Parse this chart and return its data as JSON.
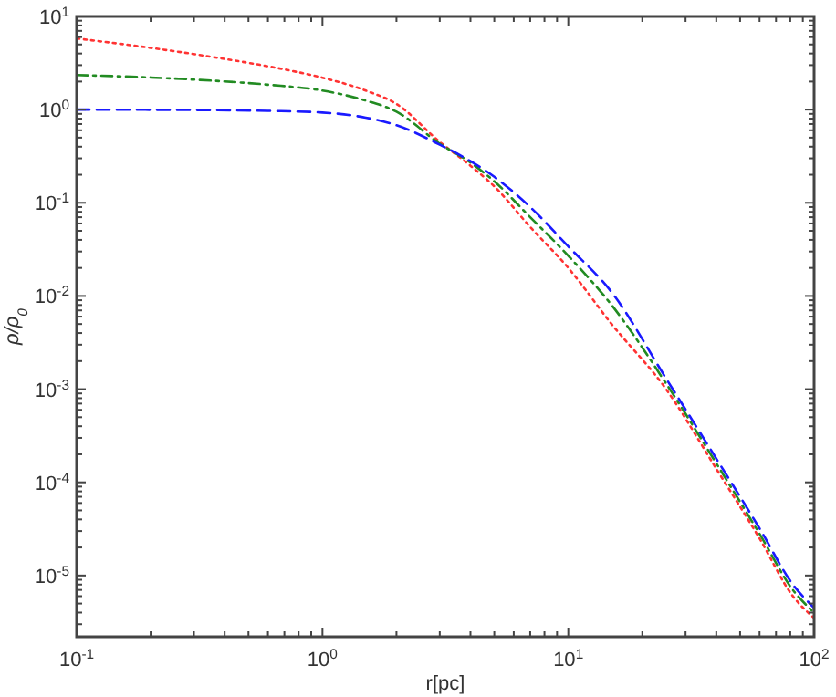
{
  "chart_data": {
    "type": "line",
    "xlabel": "r[pc]",
    "ylabel": "ρ/ρ$_{0}$",
    "log": "xy",
    "grid": false,
    "xlim": [
      0.1,
      100
    ],
    "ylim": [
      2.2e-06,
      10
    ],
    "xticks": [
      {
        "value": 0.1,
        "label": "10$^{-1}$"
      },
      {
        "value": 0.2,
        "label": null
      },
      {
        "value": 0.3,
        "label": null
      },
      {
        "value": 0.4,
        "label": null
      },
      {
        "value": 0.5,
        "label": null
      },
      {
        "value": 0.6,
        "label": null
      },
      {
        "value": 0.7,
        "label": null
      },
      {
        "value": 0.8,
        "label": null
      },
      {
        "value": 0.9,
        "label": null
      },
      {
        "value": 1,
        "label": "10$^{0}$"
      },
      {
        "value": 2,
        "label": null
      },
      {
        "value": 3,
        "label": null
      },
      {
        "value": 4,
        "label": null
      },
      {
        "value": 5,
        "label": null
      },
      {
        "value": 6,
        "label": null
      },
      {
        "value": 7,
        "label": null
      },
      {
        "value": 8,
        "label": null
      },
      {
        "value": 9,
        "label": null
      },
      {
        "value": 10,
        "label": "10$^{1}$"
      },
      {
        "value": 20,
        "label": null
      },
      {
        "value": 30,
        "label": null
      },
      {
        "value": 40,
        "label": null
      },
      {
        "value": 50,
        "label": null
      },
      {
        "value": 60,
        "label": null
      },
      {
        "value": 70,
        "label": null
      },
      {
        "value": 80,
        "label": null
      },
      {
        "value": 90,
        "label": null
      },
      {
        "value": 100,
        "label": "10$^{2}$"
      }
    ],
    "yticks": [
      {
        "value": 1e-05,
        "label": "10$^{-5}$"
      },
      {
        "value": 0.0001,
        "label": "10$^{-4}$"
      },
      {
        "value": 0.001,
        "label": "10$^{-3}$"
      },
      {
        "value": 0.01,
        "label": "10$^{-2}$"
      },
      {
        "value": 0.1,
        "label": "10$^{-1}$"
      },
      {
        "value": 1,
        "label": "10$^{0}$"
      },
      {
        "value": 10,
        "label": "10$^{1}$"
      }
    ],
    "series": [
      {
        "color": "#ff3333",
        "line_style": "dotted",
        "x": [
          0.1,
          0.2,
          0.4,
          0.7,
          1,
          1.5,
          2,
          3,
          4,
          5,
          7,
          10,
          15,
          25,
          40,
          60,
          82,
          100
        ],
        "values": [
          5.8,
          4.6,
          3.5,
          2.7,
          2.2,
          1.6,
          1.15,
          0.45,
          0.25,
          0.15,
          0.055,
          0.02,
          0.005,
          0.001,
          0.00014,
          2.5e-05,
          6e-06,
          3.5e-06
        ]
      },
      {
        "color": "#228b22",
        "line_style": "dashdot",
        "x": [
          0.1,
          0.3,
          0.6,
          1,
          1.5,
          2,
          3,
          4,
          5,
          7,
          10,
          15,
          25,
          40,
          60,
          82,
          100
        ],
        "values": [
          2.35,
          2.1,
          1.85,
          1.6,
          1.25,
          0.95,
          0.43,
          0.27,
          0.17,
          0.07,
          0.027,
          0.008,
          0.00115,
          0.00016,
          2.8e-05,
          7e-06,
          4e-06
        ]
      },
      {
        "color": "#1a1aff",
        "line_style": "dashed",
        "x": [
          0.1,
          0.3,
          0.6,
          1,
          1.5,
          2,
          3,
          4,
          5,
          7,
          10,
          15,
          25,
          40,
          60,
          82,
          100
        ],
        "values": [
          1.0,
          0.99,
          0.97,
          0.93,
          0.82,
          0.68,
          0.42,
          0.28,
          0.19,
          0.09,
          0.034,
          0.011,
          0.0013,
          0.00018,
          3.2e-05,
          8e-06,
          4.5e-06
        ]
      }
    ]
  }
}
